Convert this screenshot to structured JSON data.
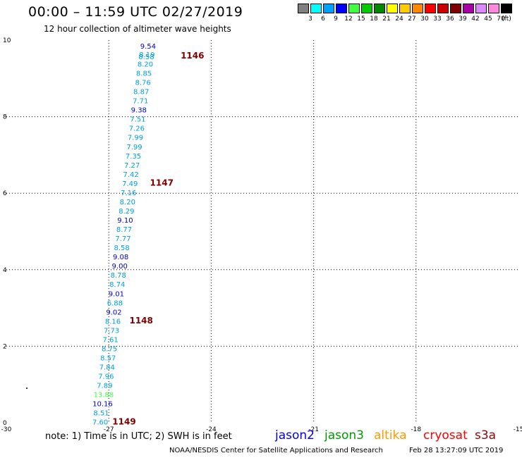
{
  "header": {
    "title": "00:00 – 11:59 UTC 02/27/2019",
    "subtitle": "12 hour collection of altimeter wave heights"
  },
  "legend": {
    "unit_label": "(ft)",
    "bins": [
      {
        "label": "3",
        "color": "#808080"
      },
      {
        "label": "6",
        "color": "#00ffff"
      },
      {
        "label": "9",
        "color": "#00a0ff"
      },
      {
        "label": "12",
        "color": "#0000ff"
      },
      {
        "label": "15",
        "color": "#40ff40"
      },
      {
        "label": "18",
        "color": "#00cc00"
      },
      {
        "label": "21",
        "color": "#008800"
      },
      {
        "label": "24",
        "color": "#ffff00"
      },
      {
        "label": "27",
        "color": "#ffcc00"
      },
      {
        "label": "30",
        "color": "#ff8800"
      },
      {
        "label": "33",
        "color": "#ff0000"
      },
      {
        "label": "36",
        "color": "#cc0000"
      },
      {
        "label": "39",
        "color": "#800000"
      },
      {
        "label": "42",
        "color": "#aa00aa"
      },
      {
        "label": "45",
        "color": "#dd88ff"
      },
      {
        "label": "70",
        "color": "#ff88dd"
      },
      {
        "label": "",
        "color": "#000000"
      }
    ]
  },
  "chart_data": {
    "type": "scatter",
    "x_ticks": [
      "-30",
      "-27",
      "-24",
      "-21",
      "-18",
      "-15"
    ],
    "y_ticks": [
      "0",
      "2",
      "4",
      "6",
      "8",
      "10"
    ],
    "xlim": [
      -30,
      -15
    ],
    "ylim": [
      0,
      10
    ],
    "grid": true,
    "points": [
      {
        "lon": -25.85,
        "lat": 9.78,
        "label": "9.54",
        "color": "#0000cc"
      },
      {
        "lon": -25.88,
        "lat": 9.56,
        "label": "8.19",
        "color": "#00a0e0"
      },
      {
        "lon": -25.9,
        "lat": 9.5,
        "label": "8.58",
        "color": "#00a0e0"
      },
      {
        "lon": -25.93,
        "lat": 9.31,
        "label": "8.20",
        "color": "#00a0e0"
      },
      {
        "lon": -25.97,
        "lat": 9.07,
        "label": "8.85",
        "color": "#00a0e0"
      },
      {
        "lon": -26.0,
        "lat": 8.83,
        "label": "8.76",
        "color": "#00a0e0"
      },
      {
        "lon": -26.05,
        "lat": 8.59,
        "label": "8.87",
        "color": "#00a0e0"
      },
      {
        "lon": -26.07,
        "lat": 8.35,
        "label": "7.71",
        "color": "#00a0e0"
      },
      {
        "lon": -26.12,
        "lat": 8.11,
        "label": "9.38",
        "color": "#0000cc"
      },
      {
        "lon": -26.15,
        "lat": 7.87,
        "label": "7.51",
        "color": "#00a0e0"
      },
      {
        "lon": -26.18,
        "lat": 7.63,
        "label": "7.26",
        "color": "#00a0e0"
      },
      {
        "lon": -26.22,
        "lat": 7.39,
        "label": "7.99",
        "color": "#00a0e0"
      },
      {
        "lon": -26.25,
        "lat": 7.15,
        "label": "7.99",
        "color": "#00a0e0"
      },
      {
        "lon": -26.28,
        "lat": 6.91,
        "label": "7.35",
        "color": "#00a0e0"
      },
      {
        "lon": -26.32,
        "lat": 6.67,
        "label": "7.27",
        "color": "#00a0e0"
      },
      {
        "lon": -26.35,
        "lat": 6.43,
        "label": "7.42",
        "color": "#00a0e0"
      },
      {
        "lon": -26.38,
        "lat": 6.19,
        "label": "7.49",
        "color": "#00a0e0"
      },
      {
        "lon": -26.42,
        "lat": 5.95,
        "label": "7.16",
        "color": "#00a0e0"
      },
      {
        "lon": -26.45,
        "lat": 5.71,
        "label": "8.20",
        "color": "#00a0e0"
      },
      {
        "lon": -26.48,
        "lat": 5.47,
        "label": "8.29",
        "color": "#00a0e0"
      },
      {
        "lon": -26.52,
        "lat": 5.23,
        "label": "9.10",
        "color": "#0000cc"
      },
      {
        "lon": -26.55,
        "lat": 4.99,
        "label": "8.77",
        "color": "#00a0e0"
      },
      {
        "lon": -26.58,
        "lat": 4.75,
        "label": "7.77",
        "color": "#00a0e0"
      },
      {
        "lon": -26.62,
        "lat": 4.51,
        "label": "8.58",
        "color": "#00a0e0"
      },
      {
        "lon": -26.65,
        "lat": 4.27,
        "label": "9.08",
        "color": "#0000cc"
      },
      {
        "lon": -26.68,
        "lat": 4.03,
        "label": "9.00",
        "color": "#0000cc"
      },
      {
        "lon": -26.72,
        "lat": 3.79,
        "label": "8.78",
        "color": "#00a0e0"
      },
      {
        "lon": -26.75,
        "lat": 3.55,
        "label": "8.74",
        "color": "#00a0e0"
      },
      {
        "lon": -26.78,
        "lat": 3.31,
        "label": "9.01",
        "color": "#0000cc"
      },
      {
        "lon": -26.82,
        "lat": 3.07,
        "label": "6.88",
        "color": "#00a0e0"
      },
      {
        "lon": -26.85,
        "lat": 2.83,
        "label": "9.02",
        "color": "#0000cc"
      },
      {
        "lon": -26.88,
        "lat": 2.59,
        "label": "8.16",
        "color": "#00a0e0"
      },
      {
        "lon": -26.92,
        "lat": 2.35,
        "label": "7.73",
        "color": "#00a0e0"
      },
      {
        "lon": -26.95,
        "lat": 2.11,
        "label": "7.61",
        "color": "#00a0e0"
      },
      {
        "lon": -26.98,
        "lat": 1.87,
        "label": "8.75",
        "color": "#00a0e0"
      },
      {
        "lon": -27.02,
        "lat": 1.63,
        "label": "8.57",
        "color": "#00a0e0"
      },
      {
        "lon": -27.05,
        "lat": 1.39,
        "label": "7.84",
        "color": "#00a0e0"
      },
      {
        "lon": -27.08,
        "lat": 1.15,
        "label": "7.96",
        "color": "#00a0e0"
      },
      {
        "lon": -27.12,
        "lat": 0.91,
        "label": "7.89",
        "color": "#00a0e0"
      },
      {
        "lon": -27.15,
        "lat": 0.67,
        "label": "13.88",
        "color": "#40ff40"
      },
      {
        "lon": -27.18,
        "lat": 0.43,
        "label": "10.16",
        "color": "#0000cc"
      },
      {
        "lon": -27.22,
        "lat": 0.19,
        "label": "8.51",
        "color": "#00a0e0"
      },
      {
        "lon": -27.25,
        "lat": -0.05,
        "label": "7.60",
        "color": "#00a0e0"
      }
    ],
    "pass_labels": [
      {
        "lon": -24.55,
        "lat": 9.52,
        "label": "1146",
        "color": "#800000"
      },
      {
        "lon": -25.45,
        "lat": 6.2,
        "label": "1147",
        "color": "#800000"
      },
      {
        "lon": -26.05,
        "lat": 2.6,
        "label": "1148",
        "color": "#800000"
      },
      {
        "lon": -26.55,
        "lat": -0.05,
        "label": "1149",
        "color": "#800000"
      }
    ]
  },
  "footer": {
    "note": "note:  1) Time is in UTC;  2) SWH is in feet",
    "satellites": [
      {
        "name": "jason2",
        "color": "#0000ff"
      },
      {
        "name": "jason3",
        "color": "#009900"
      },
      {
        "name": "altika",
        "color": "#ff9900"
      },
      {
        "name": "cryosat",
        "color": "#ff0000"
      },
      {
        "name": "s3a",
        "color": "#990000"
      }
    ],
    "credit": "NOAA/NESDIS Center for Satellite Applications and Research",
    "generated": "Feb 28 13:27:09 UTC 2019"
  }
}
